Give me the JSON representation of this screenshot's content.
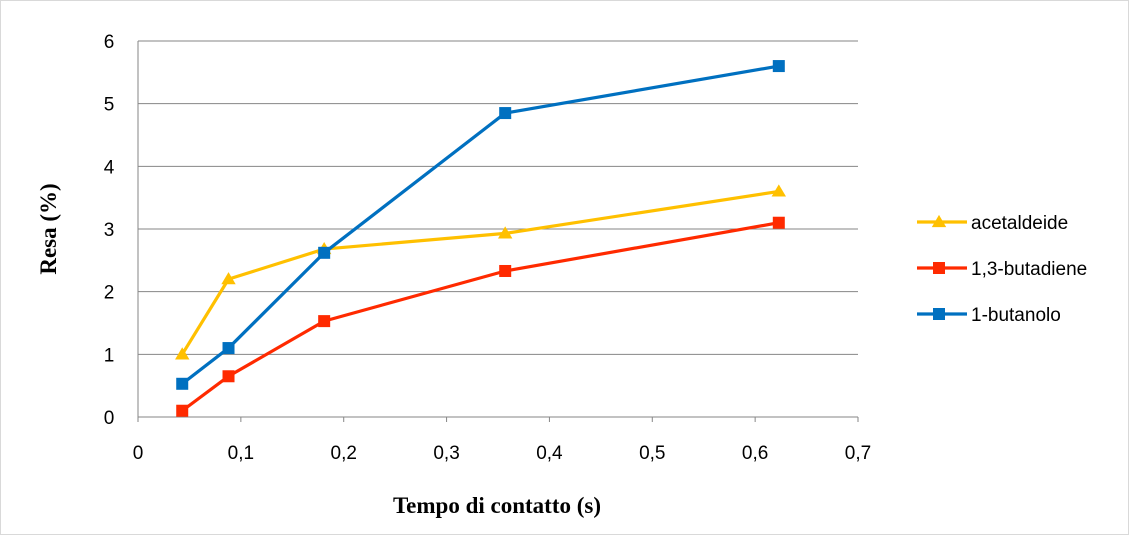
{
  "chart_data": {
    "type": "line",
    "title": "",
    "xlabel": "Tempo di contatto (s)",
    "ylabel": "Resa (%)",
    "xlim": [
      0,
      0.7
    ],
    "ylim": [
      0,
      6
    ],
    "xticks": [
      "0",
      "0,1",
      "0,2",
      "0,3",
      "0,4",
      "0,5",
      "0,6",
      "0,7"
    ],
    "yticks": [
      "0",
      "1",
      "2",
      "3",
      "4",
      "5",
      "6"
    ],
    "grid": "horizontal",
    "legend": "right",
    "series": [
      {
        "name": "acetaldeide",
        "color": "#FFC000",
        "marker": "triangle",
        "x": [
          0.043,
          0.088,
          0.181,
          0.357,
          0.623
        ],
        "y": [
          1.0,
          2.2,
          2.68,
          2.93,
          3.6
        ]
      },
      {
        "name": "1,3-butadiene",
        "color": "#FF2A00",
        "marker": "square",
        "x": [
          0.043,
          0.088,
          0.181,
          0.357,
          0.623
        ],
        "y": [
          0.1,
          0.65,
          1.53,
          2.33,
          3.1
        ]
      },
      {
        "name": "1-butanolo",
        "color": "#0070C0",
        "marker": "square",
        "x": [
          0.043,
          0.088,
          0.181,
          0.357,
          0.623
        ],
        "y": [
          0.53,
          1.1,
          2.62,
          4.85,
          5.6
        ]
      }
    ]
  }
}
